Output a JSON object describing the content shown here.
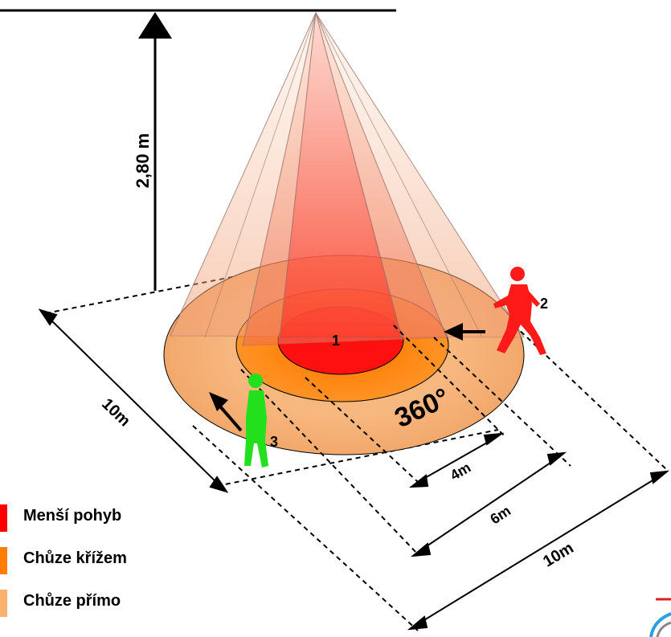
{
  "diagram": {
    "height_label": "2,80 m",
    "zones": [
      {
        "id": "1",
        "color": "#ff1a1a"
      },
      {
        "id": "2",
        "color": "#ff8a1e"
      },
      {
        "id": "3",
        "color": "#f4b87a"
      }
    ],
    "markers": {
      "inner": "1",
      "walker_cross": "2",
      "walker_direct": "3"
    },
    "angle_label": "360°",
    "dimensions": {
      "footprint": "10m",
      "inner": "4m",
      "middle": "6m",
      "outer": "10m"
    },
    "figure_colors": {
      "walker_cross": "#ff1a1a",
      "walker_direct": "#22e01c"
    }
  },
  "legend": [
    {
      "label": "Menší pohyb",
      "color": "#ff0000"
    },
    {
      "label": "Chůze křížem",
      "color": "#ff7d00"
    },
    {
      "label": "Chůze přímo",
      "color": "#f8b26e"
    }
  ]
}
